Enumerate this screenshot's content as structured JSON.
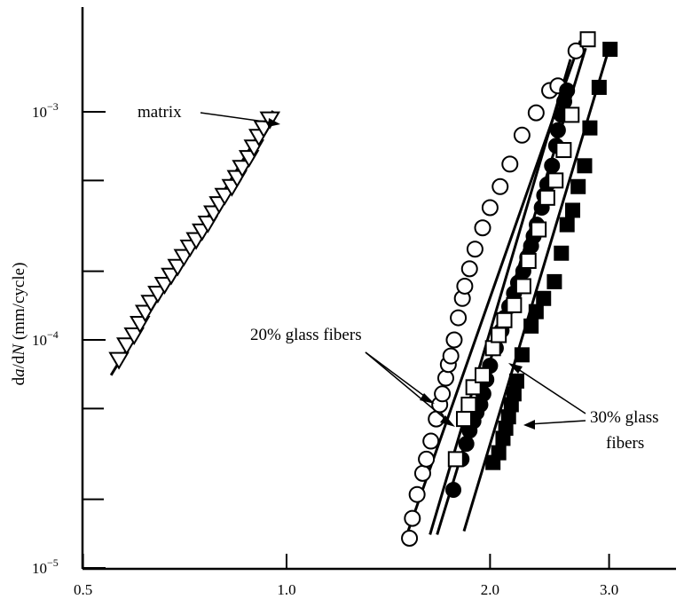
{
  "chart_data": {
    "type": "scatter",
    "title": "",
    "xlabel": "",
    "ylabel": "da/dN (mm/cycle)",
    "x_scale": "log",
    "y_scale": "log",
    "xlim": [
      0.5,
      3.6
    ],
    "ylim": [
      1e-05,
      0.0025
    ],
    "x_ticks": [
      {
        "value": 0.5,
        "label": "0.5"
      },
      {
        "value": 1.0,
        "label": "1.0"
      },
      {
        "value": 2.0,
        "label": "2.0"
      },
      {
        "value": 3.0,
        "label": "3.0"
      }
    ],
    "y_ticks_major": [
      {
        "value": 0.001,
        "base": "10",
        "exp": "−3"
      },
      {
        "value": 0.0001,
        "base": "10",
        "exp": "−4"
      },
      {
        "value": 1e-05,
        "base": "10",
        "exp": "−5"
      }
    ],
    "y_ticks_minor": [
      0.0005,
      0.0002,
      5e-05,
      2e-05
    ],
    "annotations": {
      "matrix": "matrix",
      "glass20": "20% glass fibers",
      "glass30_line1": "30% glass",
      "glass30_line2": "fibers"
    },
    "series": [
      {
        "marker": "triangle-open",
        "fit": [
          [
            0.55,
            7e-05
          ],
          [
            0.955,
            0.00101
          ]
        ],
        "points": [
          [
            0.565,
            8.2e-05
          ],
          [
            0.58,
            9.5e-05
          ],
          [
            0.595,
            0.000105
          ],
          [
            0.607,
            0.000118
          ],
          [
            0.618,
            0.000132
          ],
          [
            0.63,
            0.000146
          ],
          [
            0.645,
            0.00016
          ],
          [
            0.66,
            0.000175
          ],
          [
            0.675,
            0.000192
          ],
          [
            0.69,
            0.00021
          ],
          [
            0.705,
            0.000232
          ],
          [
            0.72,
            0.000255
          ],
          [
            0.735,
            0.000275
          ],
          [
            0.75,
            0.0003
          ],
          [
            0.765,
            0.000325
          ],
          [
            0.78,
            0.00036
          ],
          [
            0.795,
            0.000395
          ],
          [
            0.81,
            0.00043
          ],
          [
            0.83,
            0.00047
          ],
          [
            0.845,
            0.000515
          ],
          [
            0.86,
            0.00057
          ],
          [
            0.88,
            0.00063
          ],
          [
            0.895,
            0.0007
          ],
          [
            0.91,
            0.00078
          ],
          [
            0.925,
            0.00085
          ],
          [
            0.945,
            0.00093
          ]
        ]
      },
      {
        "marker": "circle-open",
        "fit": [
          [
            1.5,
            1.35e-05
          ],
          [
            2.72,
            0.00205
          ]
        ],
        "points": [
          [
            1.52,
            1.35e-05
          ],
          [
            1.535,
            1.65e-05
          ],
          [
            1.56,
            2.1e-05
          ],
          [
            1.59,
            2.6e-05
          ],
          [
            1.61,
            3e-05
          ],
          [
            1.635,
            3.6e-05
          ],
          [
            1.665,
            4.5e-05
          ],
          [
            1.685,
            5.2e-05
          ],
          [
            1.7,
            5.8e-05
          ],
          [
            1.72,
            6.8e-05
          ],
          [
            1.735,
            7.8e-05
          ],
          [
            1.75,
            8.5e-05
          ],
          [
            1.77,
            0.0001
          ],
          [
            1.795,
            0.000125
          ],
          [
            1.82,
            0.000152
          ],
          [
            1.835,
            0.000172
          ],
          [
            1.865,
            0.000205
          ],
          [
            1.9,
            0.00025
          ],
          [
            1.95,
            0.00031
          ],
          [
            2.0,
            0.00038
          ],
          [
            2.07,
            0.00047
          ],
          [
            2.14,
            0.00059
          ],
          [
            2.23,
            0.00079
          ],
          [
            2.34,
            0.00099
          ],
          [
            2.45,
            0.00124
          ],
          [
            2.52,
            0.0013
          ],
          [
            2.68,
            0.00185
          ]
        ]
      },
      {
        "marker": "circle-filled",
        "fit": [
          [
            1.63,
            1.4e-05
          ],
          [
            2.63,
            0.0017
          ]
        ],
        "points": [
          [
            1.765,
            2.2e-05
          ],
          [
            1.815,
            3e-05
          ],
          [
            1.845,
            3.5e-05
          ],
          [
            1.865,
            4e-05
          ],
          [
            1.89,
            4.4e-05
          ],
          [
            1.91,
            4.8e-05
          ],
          [
            1.935,
            5.2e-05
          ],
          [
            1.955,
            5.8e-05
          ],
          [
            1.975,
            6.7e-05
          ],
          [
            2.0,
            7.7e-05
          ],
          [
            2.04,
            9.2e-05
          ],
          [
            2.08,
            0.00011
          ],
          [
            2.1,
            0.000125
          ],
          [
            2.135,
            0.00014
          ],
          [
            2.17,
            0.00016
          ],
          [
            2.2,
            0.000178
          ],
          [
            2.24,
            0.0002
          ],
          [
            2.27,
            0.00023
          ],
          [
            2.3,
            0.000258
          ],
          [
            2.32,
            0.000285
          ],
          [
            2.345,
            0.00032
          ],
          [
            2.385,
            0.00038
          ],
          [
            2.405,
            0.00043
          ],
          [
            2.43,
            0.00048
          ],
          [
            2.47,
            0.00058
          ],
          [
            2.505,
            0.00071
          ],
          [
            2.52,
            0.00083
          ],
          [
            2.55,
            0.00097
          ],
          [
            2.575,
            0.00111
          ],
          [
            2.6,
            0.00124
          ]
        ]
      },
      {
        "marker": "square-open",
        "fit": [
          [
            1.67,
            1.4e-05
          ],
          [
            2.77,
            0.0019
          ]
        ],
        "points": [
          [
            1.78,
            3e-05
          ],
          [
            1.83,
            4.5e-05
          ],
          [
            1.86,
            5.2e-05
          ],
          [
            1.89,
            6.2e-05
          ],
          [
            1.95,
            7e-05
          ],
          [
            2.02,
            9.2e-05
          ],
          [
            2.06,
            0.000105
          ],
          [
            2.1,
            0.000122
          ],
          [
            2.17,
            0.000142
          ],
          [
            2.24,
            0.000172
          ],
          [
            2.28,
            0.000222
          ],
          [
            2.36,
            0.000305
          ],
          [
            2.43,
            0.00042
          ],
          [
            2.5,
            0.0005
          ],
          [
            2.57,
            0.00068
          ],
          [
            2.64,
            0.00097
          ],
          [
            2.79,
            0.00208
          ]
        ]
      },
      {
        "marker": "square-filled",
        "fit": [
          [
            1.83,
            1.45e-05
          ],
          [
            3.0,
            0.0019
          ]
        ],
        "points": [
          [
            2.02,
            2.9e-05
          ],
          [
            2.06,
            3.2e-05
          ],
          [
            2.09,
            3.7e-05
          ],
          [
            2.11,
            4.1e-05
          ],
          [
            2.13,
            4.6e-05
          ],
          [
            2.15,
            5.2e-05
          ],
          [
            2.17,
            5.8e-05
          ],
          [
            2.19,
            6.6e-05
          ],
          [
            2.23,
            8.6e-05
          ],
          [
            2.3,
            0.000115
          ],
          [
            2.34,
            0.000133
          ],
          [
            2.4,
            0.000152
          ],
          [
            2.49,
            0.00018
          ],
          [
            2.55,
            0.00024
          ],
          [
            2.6,
            0.00032
          ],
          [
            2.65,
            0.00037
          ],
          [
            2.7,
            0.00047
          ],
          [
            2.76,
            0.00058
          ],
          [
            2.81,
            0.00085
          ],
          [
            2.9,
            0.00128
          ],
          [
            3.01,
            0.00188
          ]
        ]
      }
    ]
  }
}
